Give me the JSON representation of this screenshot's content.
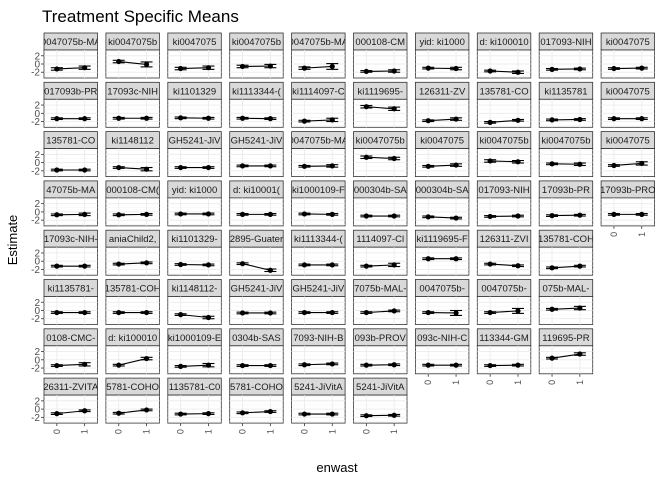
{
  "chart_data": {
    "type": "scatter",
    "title": "Treatment Specific Means",
    "xlabel": "enwast",
    "ylabel": "Estimate",
    "x_categories": [
      "0",
      "1"
    ],
    "y_ticks": [
      2,
      0,
      -2
    ],
    "ylim": [
      -3.4,
      3.4
    ],
    "grid": true,
    "layout": {
      "columns": 10
    },
    "panels": [
      {
        "label": "0047075b-MA",
        "values": [
          -1.2,
          -0.9
        ],
        "ci": [
          [
            -1.5,
            -0.9
          ],
          [
            -1.3,
            -0.5
          ]
        ]
      },
      {
        "label": "ki0047075b",
        "values": [
          0.6,
          -0.1
        ],
        "ci": [
          [
            0.3,
            0.9
          ],
          [
            -0.7,
            0.5
          ]
        ]
      },
      {
        "label": "ki0047075",
        "values": [
          -1.1,
          -0.9
        ],
        "ci": [
          [
            -1.4,
            -0.8
          ],
          [
            -1.3,
            -0.5
          ]
        ]
      },
      {
        "label": "ki0047075b",
        "values": [
          -0.6,
          -0.5
        ],
        "ci": [
          [
            -0.9,
            -0.3
          ],
          [
            -0.9,
            -0.1
          ]
        ]
      },
      {
        "label": "0047075b-MA",
        "values": [
          -1.0,
          -0.6
        ],
        "ci": [
          [
            -1.3,
            -0.7
          ],
          [
            -1.3,
            0.1
          ]
        ]
      },
      {
        "label": "000108-CM",
        "values": [
          -1.8,
          -1.7
        ],
        "ci": [
          [
            -2.0,
            -1.6
          ],
          [
            -2.0,
            -1.4
          ]
        ]
      },
      {
        "label": "yid: ki1000",
        "values": [
          -1.0,
          -1.1
        ],
        "ci": [
          [
            -1.2,
            -0.8
          ],
          [
            -1.4,
            -0.8
          ]
        ]
      },
      {
        "label": "d: ki100010",
        "values": [
          -1.7,
          -2.0
        ],
        "ci": [
          [
            -1.9,
            -1.5
          ],
          [
            -2.3,
            -1.7
          ]
        ]
      },
      {
        "label": "017093-NIH",
        "values": [
          -1.3,
          -1.2
        ],
        "ci": [
          [
            -1.5,
            -1.1
          ],
          [
            -1.4,
            -1.0
          ]
        ]
      },
      {
        "label": "ki0047075",
        "values": [
          -1.1,
          -1.0
        ],
        "ci": [
          [
            -1.3,
            -0.9
          ],
          [
            -1.2,
            -0.8
          ]
        ]
      },
      {
        "label": "017093b-PR",
        "values": [
          -1.3,
          -1.3
        ],
        "ci": [
          [
            -1.5,
            -1.1
          ],
          [
            -1.5,
            -1.1
          ]
        ]
      },
      {
        "label": "17093c-NIH",
        "values": [
          -1.2,
          -1.2
        ],
        "ci": [
          [
            -1.4,
            -1.0
          ],
          [
            -1.4,
            -1.0
          ]
        ]
      },
      {
        "label": "ki1101329",
        "values": [
          -1.1,
          -1.2
        ],
        "ci": [
          [
            -1.3,
            -0.9
          ],
          [
            -1.4,
            -1.0
          ]
        ]
      },
      {
        "label": "ki1113344-(",
        "values": [
          -1.2,
          -1.3
        ],
        "ci": [
          [
            -1.4,
            -1.0
          ],
          [
            -1.5,
            -1.1
          ]
        ]
      },
      {
        "label": "ki1114097-C",
        "values": [
          -1.9,
          -1.6
        ],
        "ci": [
          [
            -2.1,
            -1.7
          ],
          [
            -2.0,
            -1.2
          ]
        ]
      },
      {
        "label": "ki1119695-",
        "values": [
          1.6,
          1.1
        ],
        "ci": [
          [
            1.3,
            1.9
          ],
          [
            0.7,
            1.5
          ]
        ]
      },
      {
        "label": "126311-ZV",
        "values": [
          -1.8,
          -1.4
        ],
        "ci": [
          [
            -2.0,
            -1.6
          ],
          [
            -1.7,
            -1.1
          ]
        ]
      },
      {
        "label": "135781-CO",
        "values": [
          -2.2,
          -1.7
        ],
        "ci": [
          [
            -2.4,
            -2.0
          ],
          [
            -1.9,
            -1.5
          ]
        ]
      },
      {
        "label": "ki1135781",
        "values": [
          -1.6,
          -1.5
        ],
        "ci": [
          [
            -1.8,
            -1.4
          ],
          [
            -1.7,
            -1.3
          ]
        ]
      },
      {
        "label": "ki0047075",
        "values": [
          -1.3,
          -1.3
        ],
        "ci": [
          [
            -1.5,
            -1.1
          ],
          [
            -1.5,
            -1.1
          ]
        ]
      },
      {
        "label": "135781-CO",
        "values": [
          -1.8,
          -1.8
        ],
        "ci": [
          [
            -2.0,
            -1.6
          ],
          [
            -2.0,
            -1.6
          ]
        ]
      },
      {
        "label": "ki1148112",
        "values": [
          -1.2,
          -1.6
        ],
        "ci": [
          [
            -1.4,
            -1.0
          ],
          [
            -2.0,
            -1.2
          ]
        ]
      },
      {
        "label": "GH5241-JiV",
        "values": [
          -1.2,
          -1.2
        ],
        "ci": [
          [
            -1.4,
            -1.0
          ],
          [
            -1.4,
            -1.0
          ]
        ]
      },
      {
        "label": "GH5241-JiV",
        "values": [
          -0.8,
          -0.8
        ],
        "ci": [
          [
            -1.0,
            -0.6
          ],
          [
            -1.0,
            -0.6
          ]
        ]
      },
      {
        "label": "0047075b-MA",
        "values": [
          -0.9,
          -0.8
        ],
        "ci": [
          [
            -1.1,
            -0.7
          ],
          [
            -1.1,
            -0.5
          ]
        ]
      },
      {
        "label": "ki0047075b",
        "values": [
          1.3,
          1.0
        ],
        "ci": [
          [
            1.0,
            1.6
          ],
          [
            0.7,
            1.3
          ]
        ]
      },
      {
        "label": "ki0047075",
        "values": [
          -0.9,
          -0.6
        ],
        "ci": [
          [
            -1.1,
            -0.7
          ],
          [
            -0.9,
            -0.3
          ]
        ]
      },
      {
        "label": "ki0047075b",
        "values": [
          0.4,
          0.2
        ],
        "ci": [
          [
            0.1,
            0.7
          ],
          [
            -0.1,
            0.5
          ]
        ]
      },
      {
        "label": "ki0047075b",
        "values": [
          -0.3,
          -0.4
        ],
        "ci": [
          [
            -0.5,
            -0.1
          ],
          [
            -0.7,
            -0.1
          ]
        ]
      },
      {
        "label": "ki0047075",
        "values": [
          -0.7,
          -0.2
        ],
        "ci": [
          [
            -0.9,
            -0.5
          ],
          [
            -0.6,
            0.2
          ]
        ]
      },
      {
        "label": "47075b-MA",
        "values": [
          -0.7,
          -0.6
        ],
        "ci": [
          [
            -0.9,
            -0.5
          ],
          [
            -0.9,
            -0.3
          ]
        ]
      },
      {
        "label": "000108-CM(",
        "values": [
          -0.7,
          -0.6
        ],
        "ci": [
          [
            -0.9,
            -0.5
          ],
          [
            -0.8,
            -0.4
          ]
        ]
      },
      {
        "label": "yid: ki1000",
        "values": [
          -0.5,
          -0.5
        ],
        "ci": [
          [
            -0.7,
            -0.3
          ],
          [
            -0.7,
            -0.3
          ]
        ]
      },
      {
        "label": "d: ki10001(",
        "values": [
          -0.6,
          -0.6
        ],
        "ci": [
          [
            -0.8,
            -0.4
          ],
          [
            -0.8,
            -0.4
          ]
        ]
      },
      {
        "label": "ki1000109-F",
        "values": [
          -0.5,
          -0.6
        ],
        "ci": [
          [
            -0.7,
            -0.3
          ],
          [
            -0.8,
            -0.4
          ]
        ]
      },
      {
        "label": "000304b-SA",
        "values": [
          -1.0,
          -1.0
        ],
        "ci": [
          [
            -1.2,
            -0.8
          ],
          [
            -1.2,
            -0.8
          ]
        ]
      },
      {
        "label": "000304b-SA",
        "values": [
          -1.2,
          -1.5
        ],
        "ci": [
          [
            -1.4,
            -1.0
          ],
          [
            -1.7,
            -1.3
          ]
        ]
      },
      {
        "label": "017093-NIH",
        "values": [
          -1.1,
          -1.0
        ],
        "ci": [
          [
            -1.3,
            -0.9
          ],
          [
            -1.2,
            -0.8
          ]
        ]
      },
      {
        "label": "17093b-PR",
        "values": [
          -0.9,
          -0.8
        ],
        "ci": [
          [
            -1.1,
            -0.7
          ],
          [
            -1.0,
            -0.6
          ]
        ]
      },
      {
        "label": "17093b-PRO",
        "values": [
          -0.6,
          -0.6
        ],
        "ci": [
          [
            -0.8,
            -0.4
          ],
          [
            -0.8,
            -0.4
          ]
        ]
      },
      {
        "label": "17093c-NIH-",
        "values": [
          -1.2,
          -1.2
        ],
        "ci": [
          [
            -1.4,
            -1.0
          ],
          [
            -1.4,
            -1.0
          ]
        ]
      },
      {
        "label": "aniaChild2,",
        "values": [
          -0.7,
          -0.4
        ],
        "ci": [
          [
            -0.9,
            -0.5
          ],
          [
            -0.6,
            -0.2
          ]
        ]
      },
      {
        "label": "ki1101329-",
        "values": [
          -0.8,
          -0.9
        ],
        "ci": [
          [
            -1.0,
            -0.6
          ],
          [
            -1.1,
            -0.7
          ]
        ]
      },
      {
        "label": "2895-Guater",
        "values": [
          -0.6,
          -2.2
        ],
        "ci": [
          [
            -0.8,
            -0.4
          ],
          [
            -2.5,
            -1.9
          ]
        ]
      },
      {
        "label": "ki1113344-(",
        "values": [
          -0.9,
          -0.9
        ],
        "ci": [
          [
            -1.1,
            -0.7
          ],
          [
            -1.1,
            -0.7
          ]
        ]
      },
      {
        "label": "1114097-Cl",
        "values": [
          -1.2,
          -0.9
        ],
        "ci": [
          [
            -1.4,
            -1.0
          ],
          [
            -1.3,
            -0.5
          ]
        ]
      },
      {
        "label": "ki1119695-F",
        "values": [
          0.6,
          0.6
        ],
        "ci": [
          [
            0.4,
            0.8
          ],
          [
            0.4,
            0.8
          ]
        ]
      },
      {
        "label": "126311-ZVI",
        "values": [
          -0.7,
          -1.1
        ],
        "ci": [
          [
            -0.9,
            -0.5
          ],
          [
            -1.3,
            -0.9
          ]
        ]
      },
      {
        "label": "135781-COH",
        "values": [
          -1.6,
          -1.2
        ],
        "ci": [
          [
            -1.8,
            -1.4
          ],
          [
            -1.4,
            -1.0
          ]
        ]
      },
      {
        "label": "",
        "values": [],
        "ci": []
      },
      {
        "label": "ki1135781-",
        "values": [
          -0.5,
          -0.5
        ],
        "ci": [
          [
            -0.7,
            -0.3
          ],
          [
            -0.7,
            -0.3
          ]
        ]
      },
      {
        "label": "135781-COH",
        "values": [
          -0.5,
          -0.5
        ],
        "ci": [
          [
            -0.7,
            -0.3
          ],
          [
            -0.7,
            -0.3
          ]
        ]
      },
      {
        "label": "ki1148112-",
        "values": [
          -1.0,
          -1.7
        ],
        "ci": [
          [
            -1.2,
            -0.8
          ],
          [
            -2.0,
            -1.4
          ]
        ]
      },
      {
        "label": "GH5241-JiV",
        "values": [
          -0.6,
          -0.6
        ],
        "ci": [
          [
            -0.8,
            -0.4
          ],
          [
            -0.8,
            -0.4
          ]
        ]
      },
      {
        "label": "GH5241-JiV",
        "values": [
          -0.5,
          -0.5
        ],
        "ci": [
          [
            -0.7,
            -0.3
          ],
          [
            -0.7,
            -0.3
          ]
        ]
      },
      {
        "label": "7075b-MAL-",
        "values": [
          -0.5,
          -0.1
        ],
        "ci": [
          [
            -0.7,
            -0.3
          ],
          [
            -0.3,
            0.1
          ]
        ]
      },
      {
        "label": "0047075b-",
        "values": [
          -0.5,
          -0.6
        ],
        "ci": [
          [
            -0.7,
            -0.3
          ],
          [
            -1.2,
            0.0
          ]
        ]
      },
      {
        "label": "0047075b-",
        "values": [
          -0.5,
          -0.1
        ],
        "ci": [
          [
            -0.7,
            -0.3
          ],
          [
            -0.7,
            0.5
          ]
        ]
      },
      {
        "label": "075b-MAL-",
        "values": [
          0.3,
          0.6
        ],
        "ci": [
          [
            0.1,
            0.5
          ],
          [
            0.2,
            1.0
          ]
        ]
      },
      {
        "label": "",
        "values": [],
        "ci": []
      },
      {
        "label": "0108-CMC-",
        "values": [
          -1.4,
          -1.1
        ],
        "ci": [
          [
            -1.6,
            -1.2
          ],
          [
            -1.5,
            -0.7
          ]
        ]
      },
      {
        "label": "d: ki100010",
        "values": [
          -1.3,
          0.3
        ],
        "ci": [
          [
            -1.5,
            -1.1
          ],
          [
            0.0,
            0.6
          ]
        ]
      },
      {
        "label": "ki1000109-E",
        "values": [
          -1.6,
          -1.3
        ],
        "ci": [
          [
            -1.8,
            -1.4
          ],
          [
            -1.7,
            -0.9
          ]
        ]
      },
      {
        "label": "0304b-SAS",
        "values": [
          -1.4,
          -1.4
        ],
        "ci": [
          [
            -1.6,
            -1.2
          ],
          [
            -1.6,
            -1.2
          ]
        ]
      },
      {
        "label": "7093-NIH-B",
        "values": [
          -1.2,
          -1.0
        ],
        "ci": [
          [
            -1.4,
            -1.0
          ],
          [
            -1.2,
            -0.8
          ]
        ]
      },
      {
        "label": "093b-PROV",
        "values": [
          -1.3,
          -1.2
        ],
        "ci": [
          [
            -1.5,
            -1.1
          ],
          [
            -1.4,
            -1.0
          ]
        ]
      },
      {
        "label": "093c-NIH-C",
        "values": [
          -1.3,
          -1.3
        ],
        "ci": [
          [
            -1.5,
            -1.1
          ],
          [
            -1.5,
            -1.1
          ]
        ]
      },
      {
        "label": "113344-GM",
        "values": [
          -1.4,
          -1.3
        ],
        "ci": [
          [
            -1.6,
            -1.2
          ],
          [
            -1.5,
            -1.1
          ]
        ]
      },
      {
        "label": "119695-PR",
        "values": [
          0.4,
          1.4
        ],
        "ci": [
          [
            0.2,
            0.6
          ],
          [
            1.1,
            1.7
          ]
        ]
      },
      {
        "label": "",
        "values": [],
        "ci": []
      },
      {
        "label": "26311-ZVITA",
        "values": [
          -1.1,
          -0.4
        ],
        "ci": [
          [
            -1.3,
            -0.9
          ],
          [
            -0.6,
            -0.2
          ]
        ]
      },
      {
        "label": "5781-COHO",
        "values": [
          -1.0,
          -0.2
        ],
        "ci": [
          [
            -1.2,
            -0.8
          ],
          [
            -0.4,
            0.0
          ]
        ]
      },
      {
        "label": "1135781-C0",
        "values": [
          -1.2,
          -1.1
        ],
        "ci": [
          [
            -1.4,
            -1.0
          ],
          [
            -1.3,
            -0.9
          ]
        ]
      },
      {
        "label": "5781-COHO",
        "values": [
          -0.9,
          -0.6
        ],
        "ci": [
          [
            -1.1,
            -0.7
          ],
          [
            -0.8,
            -0.4
          ]
        ]
      },
      {
        "label": "5241-JiVitA",
        "values": [
          -1.2,
          -1.2
        ],
        "ci": [
          [
            -1.4,
            -1.0
          ],
          [
            -1.4,
            -1.0
          ]
        ]
      },
      {
        "label": "5241-JiVitA",
        "values": [
          -1.6,
          -1.5
        ],
        "ci": [
          [
            -1.8,
            -1.4
          ],
          [
            -1.7,
            -1.3
          ]
        ]
      }
    ]
  }
}
